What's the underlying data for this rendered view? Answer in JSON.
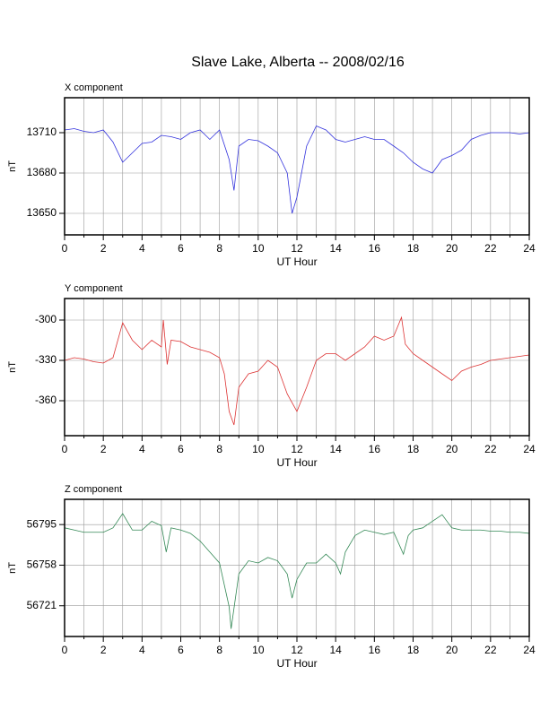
{
  "title": "Slave Lake, Alberta -- 2008/02/16",
  "chart_data": [
    {
      "type": "line",
      "title": "X component",
      "xlabel": "UT Hour",
      "ylabel": "nT",
      "color": "#3333dd",
      "xlim": [
        0,
        24
      ],
      "xticks": [
        0,
        2,
        4,
        6,
        8,
        10,
        12,
        14,
        16,
        18,
        20,
        22,
        24
      ],
      "xminor": [
        1,
        3,
        5,
        7,
        9,
        11,
        13,
        15,
        17,
        19,
        21,
        23
      ],
      "ylim": [
        13634,
        13736
      ],
      "yticks": [
        13650,
        13680,
        13710
      ],
      "grid": true,
      "x": [
        0,
        0.5,
        1,
        1.5,
        2,
        2.5,
        3,
        3.5,
        4,
        4.5,
        5,
        5.5,
        6,
        6.5,
        7,
        7.5,
        8,
        8.5,
        8.75,
        9,
        9.5,
        10,
        10.5,
        11,
        11.5,
        11.75,
        12,
        12.5,
        13,
        13.5,
        14,
        14.5,
        15,
        15.5,
        16,
        16.5,
        17,
        17.5,
        18,
        18.5,
        19,
        19.5,
        20,
        20.5,
        21,
        21.5,
        22,
        22.5,
        23,
        23.5,
        24
      ],
      "values": [
        13712,
        13713,
        13711,
        13710,
        13712,
        13703,
        13688,
        13695,
        13702,
        13703,
        13708,
        13707,
        13705,
        13710,
        13712,
        13705,
        13712,
        13690,
        13667,
        13700,
        13705,
        13704,
        13700,
        13695,
        13680,
        13650,
        13662,
        13700,
        13715,
        13712,
        13705,
        13703,
        13705,
        13707,
        13705,
        13705,
        13700,
        13695,
        13688,
        13683,
        13680,
        13690,
        13693,
        13697,
        13705,
        13708,
        13710,
        13710,
        13710,
        13709,
        13710
      ]
    },
    {
      "type": "line",
      "title": "Y component",
      "xlabel": "UT Hour",
      "ylabel": "nT",
      "color": "#dd3333",
      "xlim": [
        0,
        24
      ],
      "xticks": [
        0,
        2,
        4,
        6,
        8,
        10,
        12,
        14,
        16,
        18,
        20,
        22,
        24
      ],
      "xminor": [
        1,
        3,
        5,
        7,
        9,
        11,
        13,
        15,
        17,
        19,
        21,
        23
      ],
      "ylim": [
        -386,
        -284
      ],
      "yticks": [
        -360,
        -330,
        -300
      ],
      "grid": true,
      "x": [
        0,
        0.5,
        1,
        1.5,
        2,
        2.5,
        3,
        3.5,
        4,
        4.5,
        5,
        5.1,
        5.3,
        5.5,
        6,
        6.5,
        7,
        7.5,
        8,
        8.25,
        8.5,
        8.75,
        9,
        9.5,
        10,
        10.5,
        11,
        11.5,
        12,
        12.5,
        13,
        13.5,
        14,
        14.5,
        15,
        15.5,
        16,
        16.5,
        17,
        17.4,
        17.6,
        18,
        18.5,
        19,
        19.5,
        20,
        20.5,
        21,
        21.5,
        22,
        22.5,
        23,
        23.5,
        24
      ],
      "values": [
        -330,
        -328,
        -329,
        -331,
        -332,
        -328,
        -302,
        -315,
        -322,
        -315,
        -320,
        -300,
        -333,
        -315,
        -316,
        -320,
        -322,
        -324,
        -328,
        -340,
        -368,
        -378,
        -350,
        -340,
        -338,
        -330,
        -335,
        -355,
        -368,
        -350,
        -330,
        -325,
        -325,
        -330,
        -325,
        -320,
        -312,
        -315,
        -312,
        -298,
        -318,
        -325,
        -330,
        -335,
        -340,
        -345,
        -338,
        -335,
        -333,
        -330,
        -329,
        -328,
        -327,
        -326
      ]
    },
    {
      "type": "line",
      "title": "Z component",
      "xlabel": "UT Hour",
      "ylabel": "nT",
      "color": "#338855",
      "xlim": [
        0,
        24
      ],
      "xticks": [
        0,
        2,
        4,
        6,
        8,
        10,
        12,
        14,
        16,
        18,
        20,
        22,
        24
      ],
      "xminor": [
        1,
        3,
        5,
        7,
        9,
        11,
        13,
        15,
        17,
        19,
        21,
        23
      ],
      "ylim": [
        56693,
        56818
      ],
      "yticks": [
        56721,
        56758,
        56795
      ],
      "grid": true,
      "x": [
        0,
        0.5,
        1,
        1.5,
        2,
        2.5,
        3,
        3.5,
        4,
        4.5,
        5,
        5.25,
        5.5,
        6,
        6.5,
        7,
        7.5,
        8,
        8.5,
        8.6,
        8.8,
        9,
        9.5,
        10,
        10.5,
        11,
        11.5,
        11.75,
        12,
        12.5,
        13,
        13.5,
        14,
        14.25,
        14.5,
        15,
        15.5,
        16,
        16.5,
        17,
        17.5,
        17.75,
        18,
        18.5,
        19,
        19.5,
        20,
        20.5,
        21,
        21.5,
        22,
        22.5,
        23,
        23.5,
        24
      ],
      "values": [
        56792,
        56790,
        56788,
        56788,
        56788,
        56792,
        56805,
        56790,
        56790,
        56798,
        56794,
        56770,
        56792,
        56790,
        56787,
        56780,
        56770,
        56760,
        56720,
        56700,
        56725,
        56750,
        56762,
        56760,
        56765,
        56762,
        56750,
        56728,
        56745,
        56760,
        56760,
        56768,
        56760,
        56750,
        56770,
        56785,
        56790,
        56788,
        56786,
        56788,
        56768,
        56785,
        56790,
        56792,
        56798,
        56804,
        56792,
        56790,
        56790,
        56790,
        56789,
        56789,
        56788,
        56788,
        56787
      ]
    }
  ]
}
